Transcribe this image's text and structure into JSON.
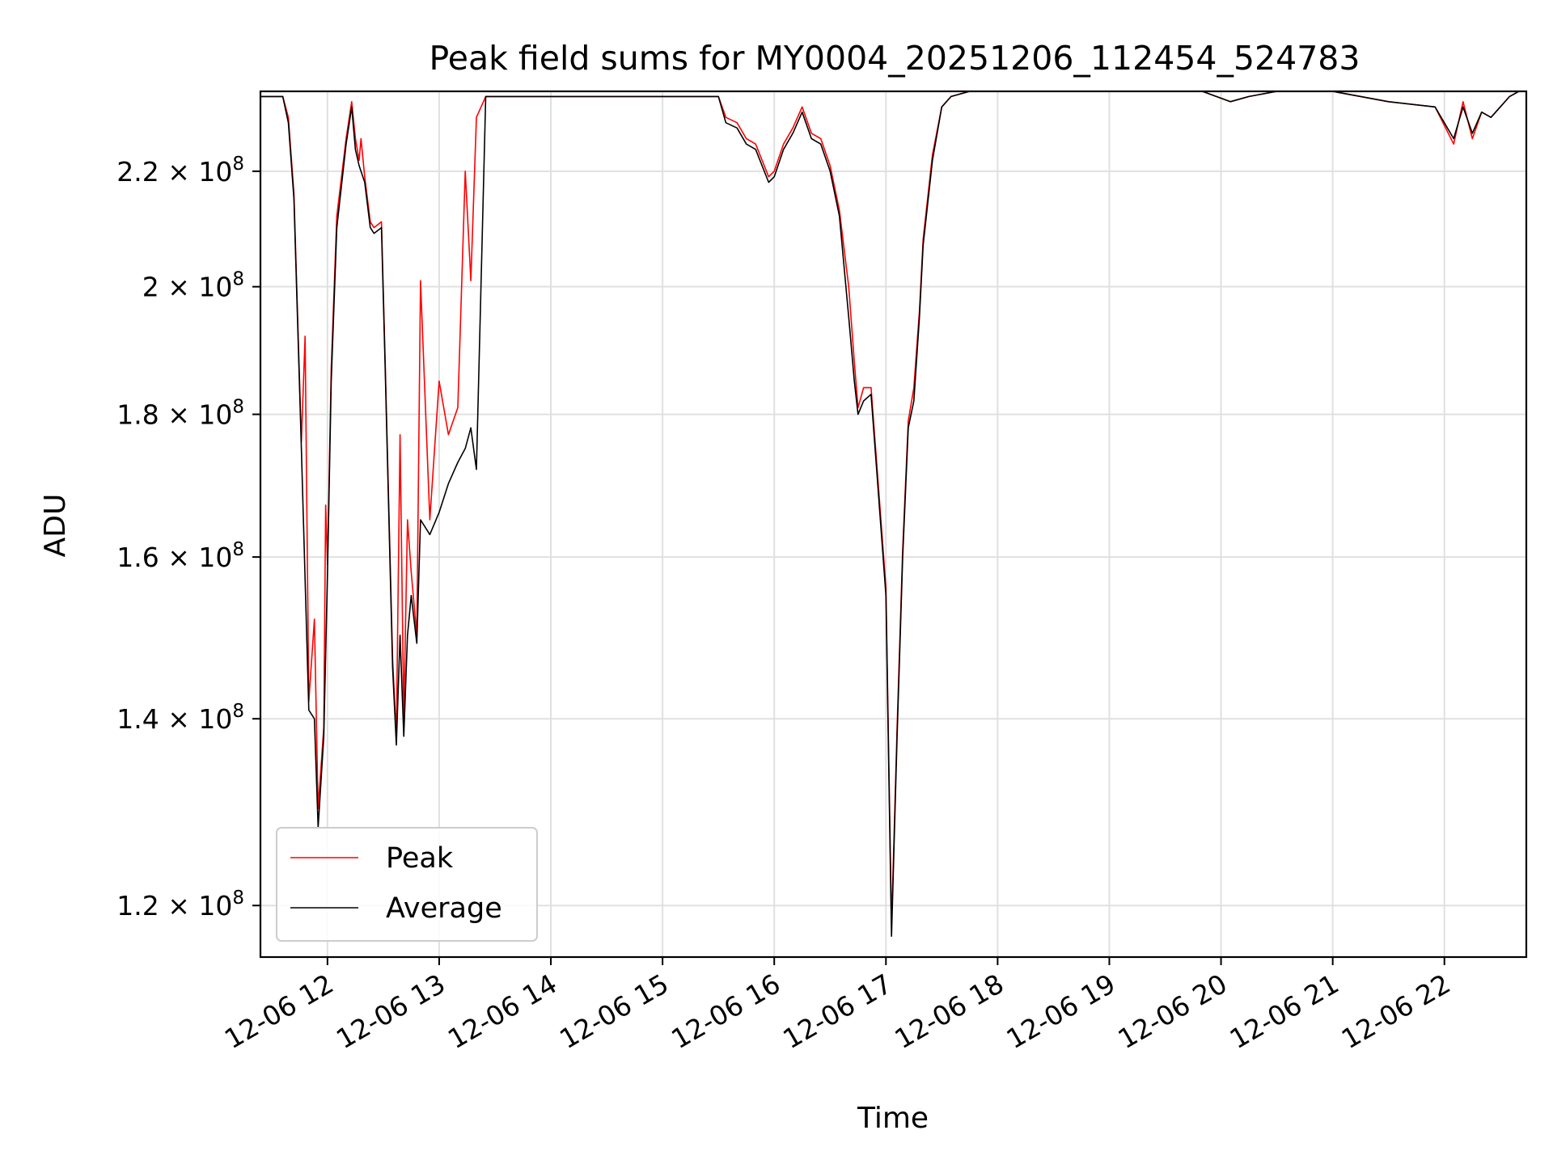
{
  "chart_data": {
    "type": "line",
    "title": "Peak field sums for MY0004_20251206_112454_524783",
    "xlabel": "Time",
    "ylabel": "ADU",
    "yscale": "log",
    "ylim": [
      115000000,
      235000000
    ],
    "xlim": [
      "2025-12-06 11:24",
      "2025-12-06 22:44"
    ],
    "grid": true,
    "legend_position": "lower-left",
    "x_tick_values": [
      "2025-12-06 12:00",
      "2025-12-06 13:00",
      "2025-12-06 14:00",
      "2025-12-06 15:00",
      "2025-12-06 16:00",
      "2025-12-06 17:00",
      "2025-12-06 18:00",
      "2025-12-06 19:00",
      "2025-12-06 20:00",
      "2025-12-06 21:00",
      "2025-12-06 22:00"
    ],
    "x_tick_labels": [
      "12-06 12",
      "12-06 13",
      "12-06 14",
      "12-06 15",
      "12-06 16",
      "12-06 17",
      "12-06 18",
      "12-06 19",
      "12-06 20",
      "12-06 21",
      "12-06 22"
    ],
    "y_ticks": [
      {
        "value": 120000000,
        "mantissa": "1.2",
        "exp": "8"
      },
      {
        "value": 140000000,
        "mantissa": "1.4",
        "exp": "8"
      },
      {
        "value": 160000000,
        "mantissa": "1.6",
        "exp": "8"
      },
      {
        "value": 180000000,
        "mantissa": "1.8",
        "exp": "8"
      },
      {
        "value": 200000000,
        "mantissa": "2",
        "exp": "8"
      },
      {
        "value": 220000000,
        "mantissa": "2.2",
        "exp": "8"
      }
    ],
    "series": [
      {
        "name": "Average",
        "color": "#000000",
        "x": [
          "2025-12-06 11:24",
          "2025-12-06 11:36",
          "2025-12-06 11:39",
          "2025-12-06 11:42",
          "2025-12-06 11:46",
          "2025-12-06 11:50",
          "2025-12-06 11:53",
          "2025-12-06 11:55",
          "2025-12-06 11:58",
          "2025-12-06 12:00",
          "2025-12-06 12:02",
          "2025-12-06 12:05",
          "2025-12-06 12:10",
          "2025-12-06 12:13",
          "2025-12-06 12:15",
          "2025-12-06 12:17",
          "2025-12-06 12:20",
          "2025-12-06 12:23",
          "2025-12-06 12:25",
          "2025-12-06 12:29",
          "2025-12-06 12:31",
          "2025-12-06 12:35",
          "2025-12-06 12:37",
          "2025-12-06 12:39",
          "2025-12-06 12:41",
          "2025-12-06 12:43",
          "2025-12-06 12:45",
          "2025-12-06 12:48",
          "2025-12-06 12:50",
          "2025-12-06 12:55",
          "2025-12-06 13:00",
          "2025-12-06 13:05",
          "2025-12-06 13:10",
          "2025-12-06 13:14",
          "2025-12-06 13:17",
          "2025-12-06 13:20",
          "2025-12-06 13:25",
          "2025-12-06 15:30",
          "2025-12-06 15:34",
          "2025-12-06 15:40",
          "2025-12-06 15:45",
          "2025-12-06 15:50",
          "2025-12-06 15:57",
          "2025-12-06 16:00",
          "2025-12-06 16:05",
          "2025-12-06 16:10",
          "2025-12-06 16:15",
          "2025-12-06 16:20",
          "2025-12-06 16:25",
          "2025-12-06 16:30",
          "2025-12-06 16:35",
          "2025-12-06 16:40",
          "2025-12-06 16:43",
          "2025-12-06 16:45",
          "2025-12-06 16:48",
          "2025-12-06 16:52",
          "2025-12-06 16:55",
          "2025-12-06 17:00",
          "2025-12-06 17:03",
          "2025-12-06 17:06",
          "2025-12-06 17:09",
          "2025-12-06 17:12",
          "2025-12-06 17:15",
          "2025-12-06 17:18",
          "2025-12-06 17:20",
          "2025-12-06 17:25",
          "2025-12-06 17:30",
          "2025-12-06 17:35",
          "2025-12-06 17:45",
          "2025-12-06 19:50",
          "2025-12-06 20:05",
          "2025-12-06 20:15",
          "2025-12-06 20:30",
          "2025-12-06 21:00",
          "2025-12-06 21:30",
          "2025-12-06 21:55",
          "2025-12-06 22:05",
          "2025-12-06 22:10",
          "2025-12-06 22:15",
          "2025-12-06 22:20",
          "2025-12-06 22:25",
          "2025-12-06 22:30",
          "2025-12-06 22:35",
          "2025-12-06 22:40"
        ],
        "values": [
          234000000,
          234000000,
          229000000,
          215000000,
          175000000,
          141000000,
          140000000,
          128000000,
          138000000,
          158000000,
          185000000,
          210000000,
          225000000,
          232000000,
          224000000,
          221000000,
          218000000,
          210000000,
          209000000,
          210000000,
          187000000,
          146000000,
          137000000,
          150000000,
          138000000,
          150000000,
          155000000,
          149000000,
          165000000,
          163000000,
          166000000,
          170000000,
          173000000,
          175000000,
          178000000,
          172000000,
          234000000,
          234000000,
          229000000,
          228000000,
          225000000,
          224000000,
          218000000,
          219000000,
          224000000,
          227000000,
          231000000,
          226000000,
          225000000,
          220000000,
          212000000,
          195000000,
          185000000,
          180000000,
          182000000,
          183000000,
          172000000,
          155000000,
          117000000,
          138000000,
          160000000,
          178000000,
          182000000,
          195000000,
          207000000,
          222000000,
          232000000,
          234000000,
          235000000,
          235000000,
          233000000,
          234000000,
          235000000,
          235000000,
          233000000,
          232000000,
          226000000,
          232000000,
          227000000,
          231000000,
          230000000,
          232000000,
          234000000,
          235000000
        ]
      },
      {
        "name": "Peak",
        "color": "#ff0000",
        "x": [
          "2025-12-06 11:24",
          "2025-12-06 11:36",
          "2025-12-06 11:39",
          "2025-12-06 11:42",
          "2025-12-06 11:46",
          "2025-12-06 11:48",
          "2025-12-06 11:50",
          "2025-12-06 11:53",
          "2025-12-06 11:55",
          "2025-12-06 11:58",
          "2025-12-06 11:59",
          "2025-12-06 12:00",
          "2025-12-06 12:02",
          "2025-12-06 12:05",
          "2025-12-06 12:10",
          "2025-12-06 12:13",
          "2025-12-06 12:15",
          "2025-12-06 12:17",
          "2025-12-06 12:18",
          "2025-12-06 12:20",
          "2025-12-06 12:23",
          "2025-12-06 12:25",
          "2025-12-06 12:29",
          "2025-12-06 12:31",
          "2025-12-06 12:35",
          "2025-12-06 12:37",
          "2025-12-06 12:39",
          "2025-12-06 12:41",
          "2025-12-06 12:43",
          "2025-12-06 12:45",
          "2025-12-06 12:48",
          "2025-12-06 12:50",
          "2025-12-06 12:55",
          "2025-12-06 13:00",
          "2025-12-06 13:05",
          "2025-12-06 13:10",
          "2025-12-06 13:14",
          "2025-12-06 13:17",
          "2025-12-06 13:20",
          "2025-12-06 13:25",
          "2025-12-06 15:30",
          "2025-12-06 15:34",
          "2025-12-06 15:40",
          "2025-12-06 15:45",
          "2025-12-06 15:50",
          "2025-12-06 15:57",
          "2025-12-06 16:00",
          "2025-12-06 16:05",
          "2025-12-06 16:10",
          "2025-12-06 16:15",
          "2025-12-06 16:20",
          "2025-12-06 16:25",
          "2025-12-06 16:30",
          "2025-12-06 16:35",
          "2025-12-06 16:40",
          "2025-12-06 16:43",
          "2025-12-06 16:45",
          "2025-12-06 16:48",
          "2025-12-06 16:52",
          "2025-12-06 16:55",
          "2025-12-06 17:00",
          "2025-12-06 17:03",
          "2025-12-06 17:06",
          "2025-12-06 17:09",
          "2025-12-06 17:12",
          "2025-12-06 17:15",
          "2025-12-06 17:18",
          "2025-12-06 17:20",
          "2025-12-06 17:25",
          "2025-12-06 17:30",
          "2025-12-06 17:35",
          "2025-12-06 17:45",
          "2025-12-06 19:50",
          "2025-12-06 20:05",
          "2025-12-06 20:15",
          "2025-12-06 20:30",
          "2025-12-06 21:00",
          "2025-12-06 21:30",
          "2025-12-06 21:55",
          "2025-12-06 22:05",
          "2025-12-06 22:10",
          "2025-12-06 22:15",
          "2025-12-06 22:20",
          "2025-12-06 22:25",
          "2025-12-06 22:30",
          "2025-12-06 22:35",
          "2025-12-06 22:40"
        ],
        "values": [
          234000000,
          234000000,
          230000000,
          216000000,
          176000000,
          192000000,
          142000000,
          152000000,
          130000000,
          139000000,
          167000000,
          159000000,
          187000000,
          212000000,
          226000000,
          233000000,
          226000000,
          222000000,
          226000000,
          219000000,
          211000000,
          210000000,
          211000000,
          188000000,
          147000000,
          138000000,
          177000000,
          140000000,
          165000000,
          158000000,
          150000000,
          201000000,
          165000000,
          185000000,
          177000000,
          181000000,
          220000000,
          201000000,
          230000000,
          234000000,
          234000000,
          230000000,
          229000000,
          226000000,
          225000000,
          219000000,
          220000000,
          225000000,
          228000000,
          232000000,
          227000000,
          226000000,
          221000000,
          213000000,
          200000000,
          188000000,
          181000000,
          184000000,
          184000000,
          173000000,
          156000000,
          118000000,
          139000000,
          161000000,
          179000000,
          184000000,
          196000000,
          208000000,
          223000000,
          232000000,
          234000000,
          235000000,
          235000000,
          233000000,
          234000000,
          235000000,
          235000000,
          233000000,
          232000000,
          225000000,
          233000000,
          226000000,
          231000000,
          230000000,
          232000000,
          234000000,
          235000000
        ]
      }
    ]
  }
}
